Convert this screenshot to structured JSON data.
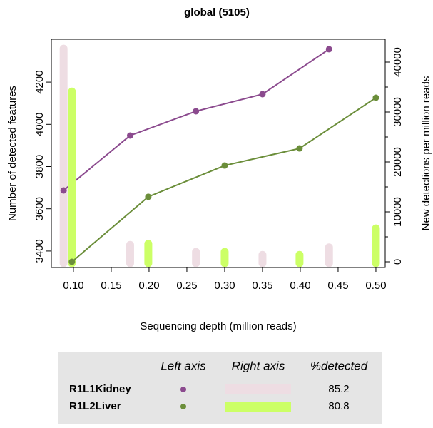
{
  "chart_data": {
    "type": "line",
    "title": "global (5105)",
    "xlabel": "Sequencing depth (million reads)",
    "ylabel": "Number of detected features",
    "y2label": "New detections per million reads",
    "xlim": [
      0.0708,
      0.5123
    ],
    "ylim": [
      3322,
      4403
    ],
    "y2lim": [
      -1143,
      44571
    ],
    "xticks": [
      {
        "value": 0.1,
        "label": "0.10"
      },
      0.15,
      {
        "value": 0.2,
        "label": "0.20"
      },
      0.25,
      {
        "value": 0.3,
        "label": "0.30"
      },
      0.35,
      {
        "value": 0.4,
        "label": "0.40"
      },
      0.45,
      {
        "value": 0.5,
        "label": "0.50"
      }
    ],
    "yticks": [
      3400,
      3600,
      3800,
      4000,
      4200
    ],
    "y2ticks": [
      0,
      10000,
      20000,
      30000,
      40000
    ],
    "legend_headers": [
      "Left axis",
      "Right axis",
      "%detected"
    ],
    "series": [
      {
        "name": "R1L1Kidney",
        "color": "#8b4a8e",
        "bar_color": "#eedde3",
        "x": [
          0.087,
          0.175,
          0.262,
          0.35,
          0.438
        ],
        "values": [
          3687,
          3947,
          4062,
          4143,
          4356
        ],
        "new_detections": [
          42700,
          3400,
          2000,
          1400,
          2900
        ],
        "percent_detected": 85.2
      },
      {
        "name": "R1L2Liver",
        "color": "#6b8e3a",
        "bar_color": "#ccff66",
        "x": [
          0.098,
          0.199,
          0.3,
          0.399,
          0.5
        ],
        "values": [
          3349,
          3657,
          3805,
          3886,
          4126
        ],
        "new_detections": [
          34100,
          3600,
          2000,
          1400,
          6700
        ],
        "percent_detected": 80.8
      }
    ]
  }
}
